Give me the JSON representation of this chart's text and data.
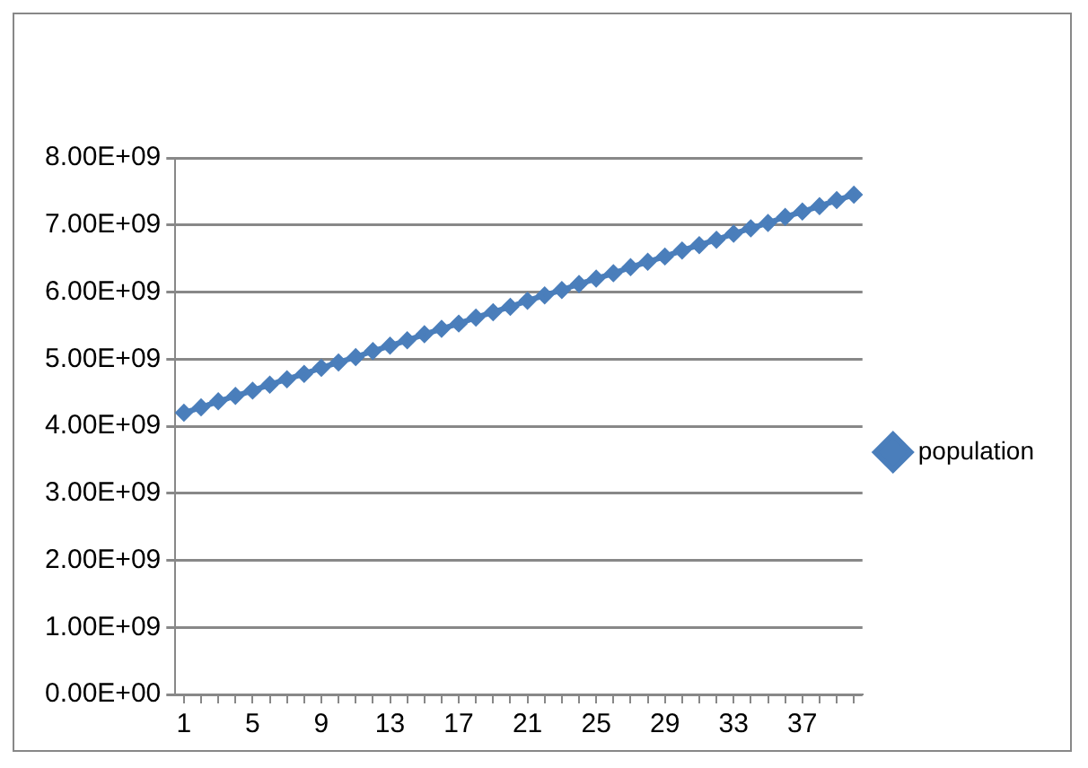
{
  "chart_data": {
    "type": "line",
    "categories": [
      "1",
      null,
      null,
      null,
      "5",
      null,
      null,
      null,
      "9",
      null,
      null,
      null,
      "13",
      null,
      null,
      null,
      "17",
      null,
      null,
      null,
      "21",
      null,
      null,
      null,
      "25",
      null,
      null,
      null,
      "29",
      null,
      null,
      null,
      "33",
      null,
      null,
      null,
      "37",
      null,
      null,
      null
    ],
    "series": [
      {
        "name": "population",
        "color": "#4a7ebb",
        "values": [
          4200000000,
          4280000000,
          4370000000,
          4450000000,
          4530000000,
          4620000000,
          4700000000,
          4780000000,
          4870000000,
          4950000000,
          5030000000,
          5120000000,
          5200000000,
          5280000000,
          5370000000,
          5450000000,
          5530000000,
          5620000000,
          5700000000,
          5780000000,
          5870000000,
          5950000000,
          6030000000,
          6120000000,
          6200000000,
          6280000000,
          6370000000,
          6450000000,
          6530000000,
          6620000000,
          6700000000,
          6780000000,
          6870000000,
          6950000000,
          7030000000,
          7120000000,
          7200000000,
          7280000000,
          7370000000,
          7450000000
        ]
      }
    ],
    "ylim": [
      0,
      8000000000
    ],
    "yticks": [
      {
        "value": 0,
        "label": "0.00E+00"
      },
      {
        "value": 1000000000,
        "label": "1.00E+09"
      },
      {
        "value": 2000000000,
        "label": "2.00E+09"
      },
      {
        "value": 3000000000,
        "label": "3.00E+09"
      },
      {
        "value": 4000000000,
        "label": "4.00E+09"
      },
      {
        "value": 5000000000,
        "label": "5.00E+09"
      },
      {
        "value": 6000000000,
        "label": "6.00E+09"
      },
      {
        "value": 7000000000,
        "label": "7.00E+09"
      },
      {
        "value": 8000000000,
        "label": "8.00E+09"
      }
    ],
    "grid": "y",
    "legend": "right",
    "marker": "diamond",
    "line_style": "solid"
  }
}
